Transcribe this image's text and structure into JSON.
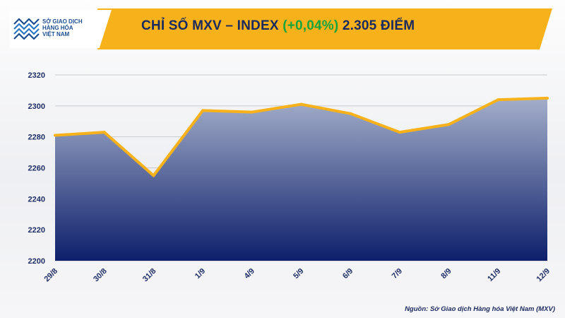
{
  "logo": {
    "lines": [
      "SỞ GIAO DỊCH",
      "HÀNG HÓA",
      "VIỆT NAM"
    ]
  },
  "header": {
    "title_main": "CHỈ SỐ MXV – INDEX",
    "title_change": "(+0,04%)",
    "title_value": "2.305 ĐIỂM",
    "band_color": "#f7b21b",
    "change_color": "#17a43b"
  },
  "source": "Nguồn: Sở Giao dịch Hàng hóa Việt Nam (MXV)",
  "chart_data": {
    "type": "area",
    "categories": [
      "29/8",
      "30/8",
      "31/8",
      "1/9",
      "4/9",
      "5/9",
      "6/9",
      "7/9",
      "8/9",
      "11/9",
      "12/9"
    ],
    "values": [
      2281,
      2283,
      2255,
      2297,
      2296,
      2301,
      2295,
      2283,
      2288,
      2304,
      2305
    ],
    "ylim": [
      2200,
      2320
    ],
    "yticks": [
      2200,
      2220,
      2240,
      2260,
      2280,
      2300,
      2320
    ],
    "grid": true,
    "line_color": "#f7b21b",
    "fill_top_color": "#a3aec9",
    "fill_bottom_color": "#0d1f6b"
  }
}
